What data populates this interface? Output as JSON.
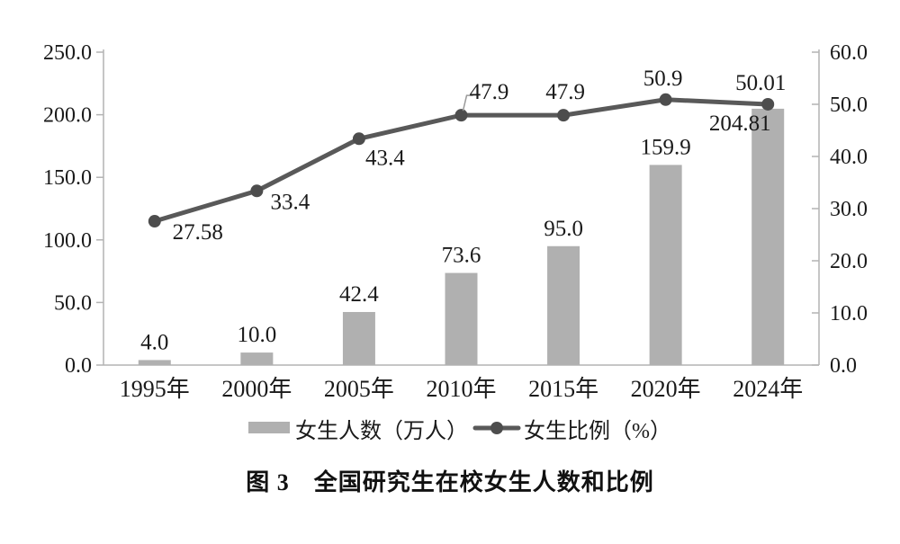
{
  "caption": {
    "text": "图 3　全国研究生在校女生人数和比例"
  },
  "colors": {
    "bar": "#b0b0b0",
    "line": "#595959",
    "marker": "#4d4d4d",
    "axis": "#b3b3b3",
    "text": "#1a1a1a",
    "leader": "#9a9a9a"
  },
  "chart_data": {
    "type": "bar+line",
    "title": "图 3　全国研究生在校女生人数和比例",
    "categories": [
      "1995年",
      "2000年",
      "2005年",
      "2010年",
      "2015年",
      "2020年",
      "2024年"
    ],
    "series": [
      {
        "name": "女生人数（万人）",
        "type": "bar",
        "axis": "left",
        "values": [
          4.0,
          10.0,
          42.4,
          73.6,
          95.0,
          159.9,
          204.81
        ],
        "labels": [
          "4.0",
          "10.0",
          "42.4",
          "73.6",
          "95.0",
          "159.9",
          "204.81"
        ],
        "color": "#b0b0b0"
      },
      {
        "name": "女生比例（%）",
        "type": "line",
        "axis": "right",
        "values": [
          27.58,
          33.4,
          43.4,
          47.9,
          47.9,
          50.9,
          50.01
        ],
        "labels": [
          "27.58",
          "33.4",
          "43.4",
          "47.9",
          "47.9",
          "50.9",
          "50.01"
        ],
        "color": "#595959"
      }
    ],
    "left_axis": {
      "min": 0,
      "max": 250,
      "step": 50,
      "tick_labels": [
        "0.0",
        "50.0",
        "100.0",
        "150.0",
        "200.0",
        "250.0"
      ]
    },
    "right_axis": {
      "min": 0,
      "max": 60,
      "step": 10,
      "tick_labels": [
        "0.0",
        "10.0",
        "20.0",
        "30.0",
        "40.0",
        "50.0",
        "60.0"
      ]
    },
    "legend": [
      {
        "label": "女生人数（万人）",
        "swatch": "bar"
      },
      {
        "label": "女生比例（%）",
        "swatch": "line"
      }
    ],
    "grid": false,
    "legend_position": "bottom"
  }
}
